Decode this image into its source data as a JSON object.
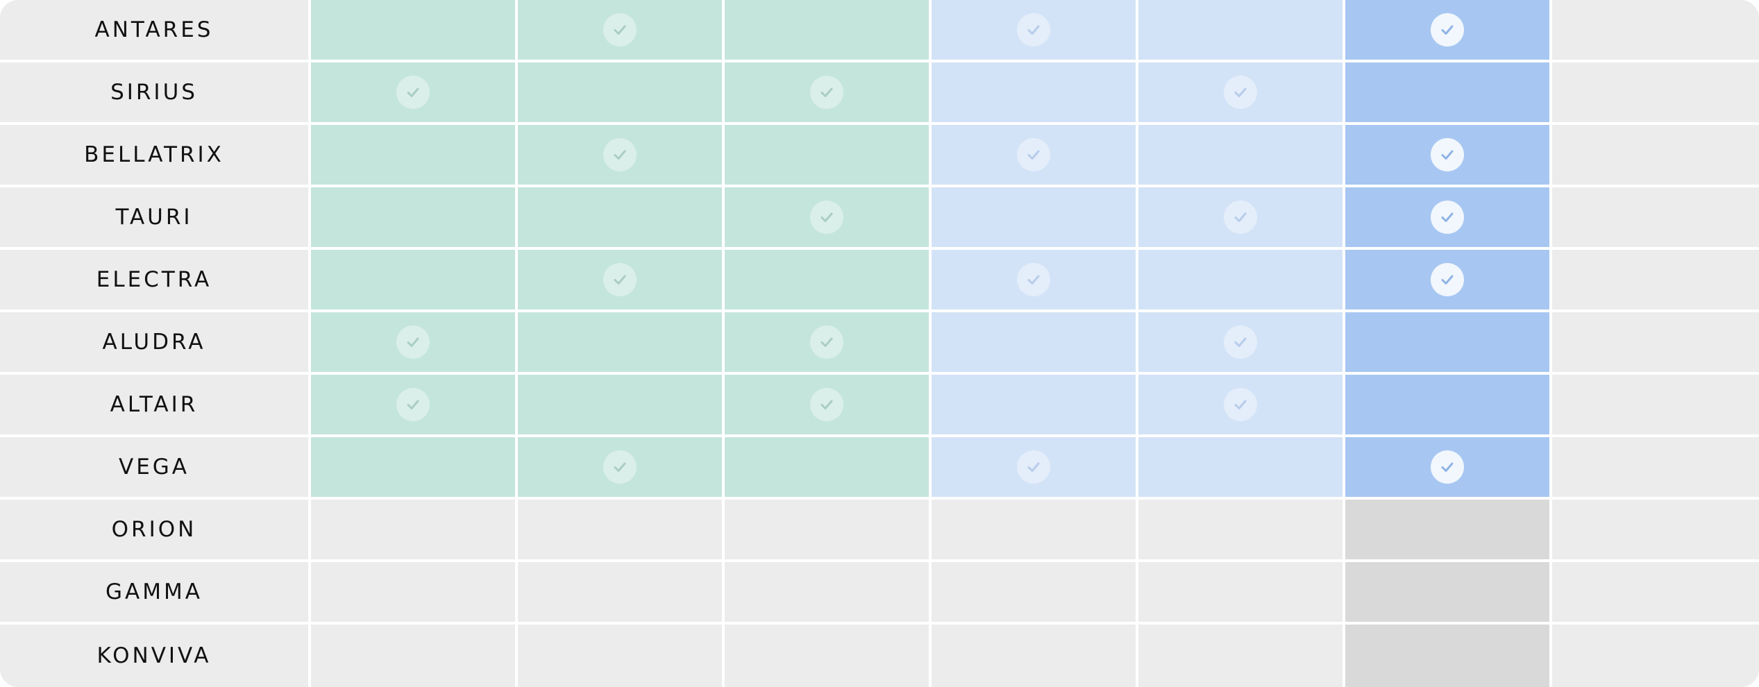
{
  "colors": {
    "green": "#c4e5dc",
    "light_blue": "#d3e3f7",
    "blue": "#a7c7f2",
    "neutral": "#ececec",
    "neutral_dark": "#d9d9d9",
    "check_circle_soft": "rgba(255,255,255,0.38)",
    "check_circle_strong": "rgba(255,255,255,0.85)",
    "check_mark_green": "#aacdc4",
    "check_mark_lightblue": "#b6cdea",
    "check_mark_blue": "#8fb3e6"
  },
  "column_count": 7,
  "rows": [
    {
      "label": "ANTARES",
      "active": true,
      "checks": [
        0,
        1,
        0,
        1,
        0,
        1,
        0
      ]
    },
    {
      "label": "SIRIUS",
      "active": true,
      "checks": [
        1,
        0,
        1,
        0,
        1,
        0,
        0
      ]
    },
    {
      "label": "BELLATRIX",
      "active": true,
      "checks": [
        0,
        1,
        0,
        1,
        0,
        1,
        0
      ]
    },
    {
      "label": "TAURI",
      "active": true,
      "checks": [
        0,
        0,
        1,
        0,
        1,
        1,
        0
      ]
    },
    {
      "label": "ELECTRA",
      "active": true,
      "checks": [
        0,
        1,
        0,
        1,
        0,
        1,
        0
      ]
    },
    {
      "label": "ALUDRA",
      "active": true,
      "checks": [
        1,
        0,
        1,
        0,
        1,
        0,
        0
      ]
    },
    {
      "label": "ALTAIR",
      "active": true,
      "checks": [
        1,
        0,
        1,
        0,
        1,
        0,
        0
      ]
    },
    {
      "label": "VEGA",
      "active": true,
      "checks": [
        0,
        1,
        0,
        1,
        0,
        1,
        0
      ]
    },
    {
      "label": "ORION",
      "active": false,
      "checks": [
        0,
        0,
        0,
        0,
        0,
        0,
        0
      ]
    },
    {
      "label": "GAMMA",
      "active": false,
      "checks": [
        0,
        0,
        0,
        0,
        0,
        0,
        0
      ]
    },
    {
      "label": "KONVIVA",
      "active": false,
      "checks": [
        0,
        0,
        0,
        0,
        0,
        0,
        0
      ]
    }
  ]
}
